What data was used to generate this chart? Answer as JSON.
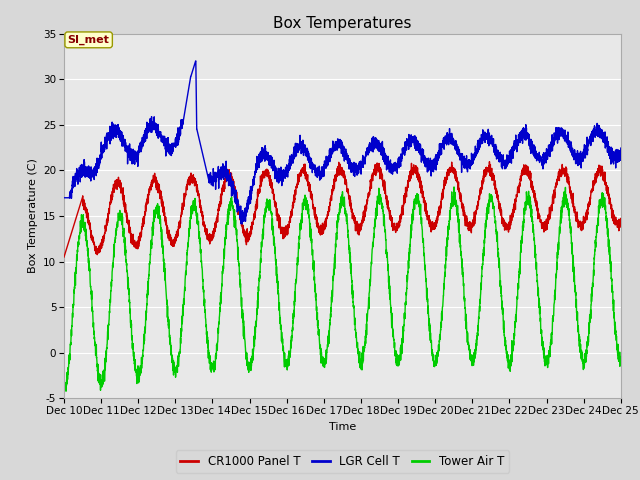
{
  "title": "Box Temperatures",
  "ylabel": "Box Temperature (C)",
  "xlabel": "Time",
  "xlim_days": [
    10,
    25
  ],
  "ylim": [
    -5,
    35
  ],
  "yticks": [
    -5,
    0,
    5,
    10,
    15,
    20,
    25,
    30,
    35
  ],
  "xtick_labels": [
    "Dec 10",
    "Dec 11",
    "Dec 12",
    "Dec 13",
    "Dec 14",
    "Dec 15",
    "Dec 16",
    "Dec 17",
    "Dec 18",
    "Dec 19",
    "Dec 20",
    "Dec 21",
    "Dec 22",
    "Dec 23",
    "Dec 24",
    "Dec 25"
  ],
  "line_colors": {
    "cr1000": "#cc0000",
    "lgr": "#0000cc",
    "tower": "#00cc00"
  },
  "line_widths": {
    "cr1000": 1.0,
    "lgr": 1.0,
    "tower": 1.0
  },
  "legend_labels": [
    "CR1000 Panel T",
    "LGR Cell T",
    "Tower Air T"
  ],
  "bg_color": "#d8d8d8",
  "plot_bg_color": "#e8e8e8",
  "annotation_text": "SI_met",
  "annotation_bg": "#ffffcc",
  "annotation_border": "#999900",
  "annotation_text_color": "#880000",
  "title_fontsize": 11,
  "label_fontsize": 8,
  "tick_fontsize": 7.5,
  "legend_fontsize": 8.5
}
